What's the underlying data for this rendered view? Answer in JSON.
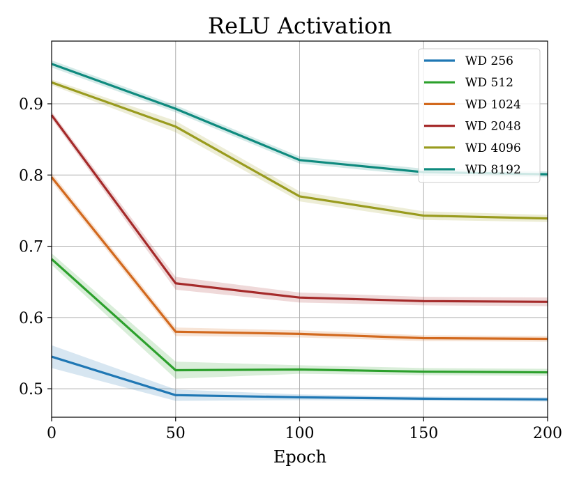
{
  "chart_data": {
    "type": "line",
    "title": "ReLU Activation",
    "xlabel": "Epoch",
    "ylabel": "",
    "xlim": [
      0,
      200
    ],
    "ylim": [
      0.46,
      0.988
    ],
    "x_ticks": [
      0,
      50,
      100,
      150,
      200
    ],
    "y_ticks": [
      0.5,
      0.6,
      0.7,
      0.8,
      0.9
    ],
    "x_tick_labels": [
      "0",
      "50",
      "100",
      "150",
      "200"
    ],
    "y_tick_labels": [
      "0.5",
      "0.6",
      "0.7",
      "0.8",
      "0.9"
    ],
    "grid": true,
    "legend_position": "top-right",
    "x": [
      0,
      50,
      100,
      150,
      200
    ],
    "series": [
      {
        "name": "WD 256",
        "color": "#1f77b4",
        "values": [
          0.545,
          0.491,
          0.488,
          0.486,
          0.485
        ],
        "band": [
          0.016,
          0.008,
          0.004,
          0.003,
          0.003
        ]
      },
      {
        "name": "WD 512",
        "color": "#2ca02c",
        "values": [
          0.682,
          0.526,
          0.527,
          0.524,
          0.523
        ],
        "band": [
          0.008,
          0.012,
          0.006,
          0.005,
          0.005
        ]
      },
      {
        "name": "WD 1024",
        "color": "#d2691e",
        "values": [
          0.797,
          0.58,
          0.577,
          0.571,
          0.57
        ],
        "band": [
          0.006,
          0.006,
          0.005,
          0.004,
          0.004
        ]
      },
      {
        "name": "WD 2048",
        "color": "#a52a2a",
        "values": [
          0.884,
          0.648,
          0.628,
          0.623,
          0.622
        ],
        "band": [
          0.005,
          0.009,
          0.007,
          0.006,
          0.006
        ]
      },
      {
        "name": "WD 4096",
        "color": "#999b1e",
        "values": [
          0.93,
          0.868,
          0.77,
          0.743,
          0.739
        ],
        "band": [
          0.004,
          0.008,
          0.007,
          0.006,
          0.005
        ]
      },
      {
        "name": "WD 8192",
        "color": "#0e8a7e",
        "values": [
          0.956,
          0.893,
          0.821,
          0.804,
          0.801
        ],
        "band": [
          0.005,
          0.005,
          0.005,
          0.005,
          0.004
        ]
      }
    ]
  }
}
